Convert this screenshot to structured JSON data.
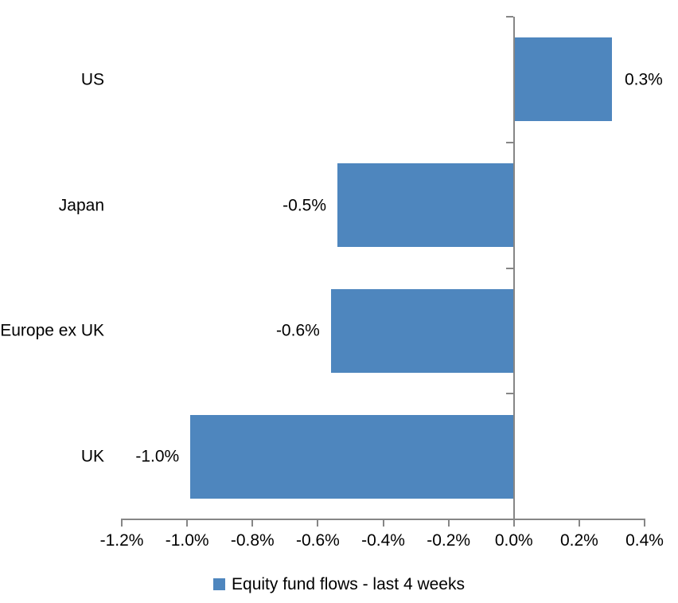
{
  "chart_data": {
    "type": "bar",
    "orientation": "horizontal",
    "categories": [
      "US",
      "Japan",
      "Europe ex UK",
      "UK"
    ],
    "series": [
      {
        "name": "Equity fund flows - last 4 weeks",
        "values": [
          0.3,
          -0.54,
          -0.56,
          -0.99
        ],
        "labels": [
          "0.3%",
          "-0.5%",
          "-0.6%",
          "-1.0%"
        ]
      }
    ],
    "xlim": [
      -1.2,
      0.4
    ],
    "x_tick_values": [
      -1.2,
      -1.0,
      -0.8,
      -0.6,
      -0.4,
      -0.2,
      0.0,
      0.2,
      0.4
    ],
    "x_tick_labels": [
      "-1.2%",
      "-1.0%",
      "-0.8%",
      "-0.6%",
      "-0.4%",
      "-0.2%",
      "0.0%",
      "0.2%",
      "0.4%"
    ],
    "grid": false,
    "legend": {
      "label": "Equity fund flows - last 4 weeks",
      "position": "bottom-center",
      "marker": "square"
    },
    "bar_color": "#4E86BE",
    "axis_color": "#868686",
    "text_color": "#000000"
  }
}
